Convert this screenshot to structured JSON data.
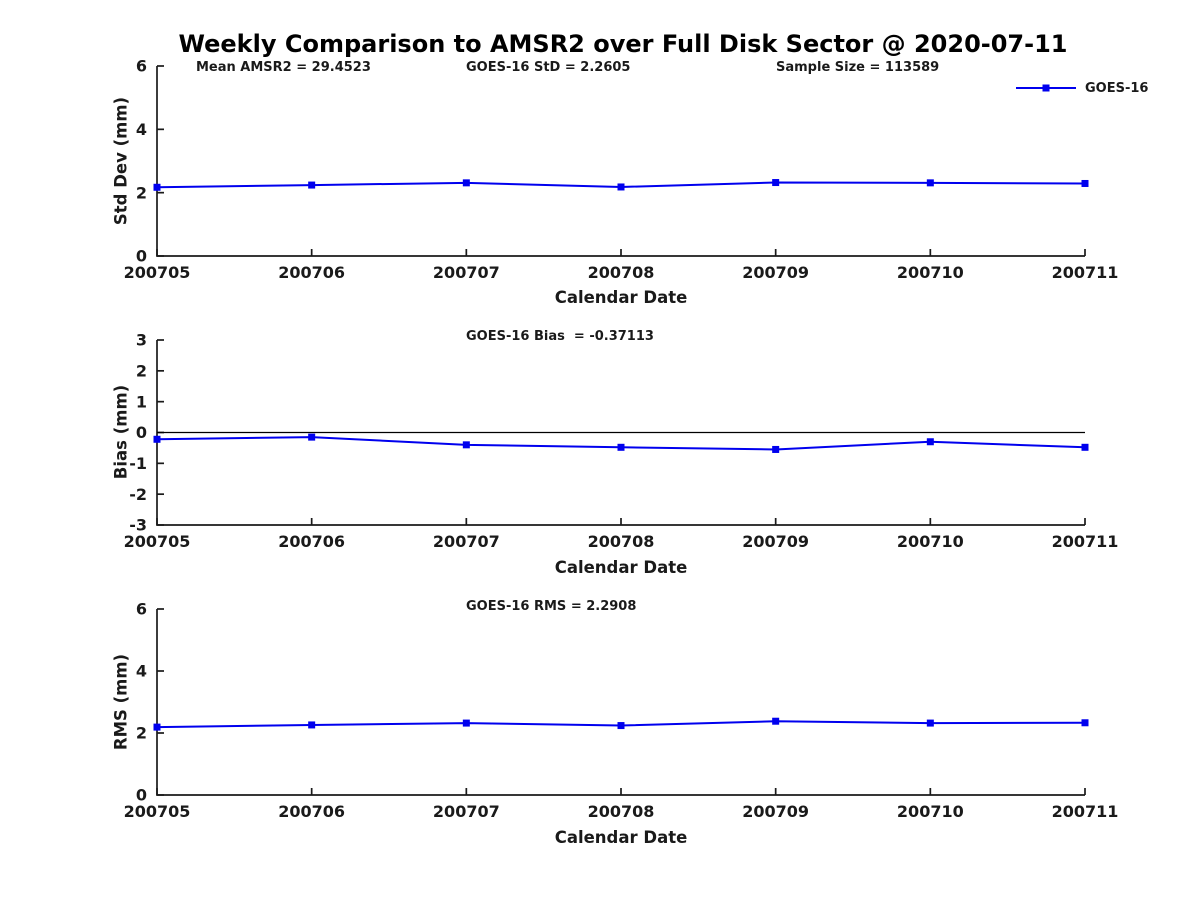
{
  "title": "Weekly Comparison to AMSR2 over Full Disk Sector @ 2020-07-11",
  "legend": {
    "label": "GOES-16",
    "position": "top-right",
    "box": false
  },
  "colors": {
    "series": "#0000EE",
    "axis": "#1a1a1a",
    "text": "#1a1a1a",
    "zero_line": "#000000",
    "background": "#ffffff"
  },
  "chart_data": [
    {
      "type": "line",
      "name": "std-dev-panel",
      "ylabel": "Std Dev (mm)",
      "xlabel": "Calendar Date",
      "categories": [
        "200705",
        "200706",
        "200707",
        "200708",
        "200709",
        "200710",
        "200711"
      ],
      "series": [
        {
          "name": "GOES-16",
          "color": "#0000EE",
          "marker": "square",
          "values": [
            2.17,
            2.24,
            2.31,
            2.18,
            2.32,
            2.31,
            2.29
          ]
        }
      ],
      "ylim": [
        0,
        6
      ],
      "yticks": [
        0,
        2,
        4,
        6
      ],
      "grid": false,
      "zero_line": false,
      "annotations": [
        {
          "text": "Mean AMSR2 = 29.4523"
        },
        {
          "text": "GOES-16 StD = 2.2605"
        },
        {
          "text": "Sample Size = 113589"
        }
      ]
    },
    {
      "type": "line",
      "name": "bias-panel",
      "ylabel": "Bias (mm)",
      "xlabel": "Calendar Date",
      "categories": [
        "200705",
        "200706",
        "200707",
        "200708",
        "200709",
        "200710",
        "200711"
      ],
      "series": [
        {
          "name": "GOES-16",
          "color": "#0000EE",
          "marker": "square",
          "values": [
            -0.22,
            -0.15,
            -0.4,
            -0.48,
            -0.55,
            -0.3,
            -0.48
          ]
        }
      ],
      "ylim": [
        -3,
        3
      ],
      "yticks": [
        -3,
        -2,
        -1,
        0,
        1,
        2,
        3
      ],
      "grid": false,
      "zero_line": true,
      "annotations": [
        {
          "text": "GOES-16 Bias  = -0.37113"
        }
      ]
    },
    {
      "type": "line",
      "name": "rms-panel",
      "ylabel": "RMS (mm)",
      "xlabel": "Calendar Date",
      "categories": [
        "200705",
        "200706",
        "200707",
        "200708",
        "200709",
        "200710",
        "200711"
      ],
      "series": [
        {
          "name": "GOES-16",
          "color": "#0000EE",
          "marker": "square",
          "values": [
            2.19,
            2.26,
            2.32,
            2.24,
            2.38,
            2.32,
            2.33
          ]
        }
      ],
      "ylim": [
        0,
        6
      ],
      "yticks": [
        0,
        2,
        4,
        6
      ],
      "grid": false,
      "zero_line": false,
      "annotations": [
        {
          "text": "GOES-16 RMS = 2.2908"
        }
      ]
    }
  ]
}
